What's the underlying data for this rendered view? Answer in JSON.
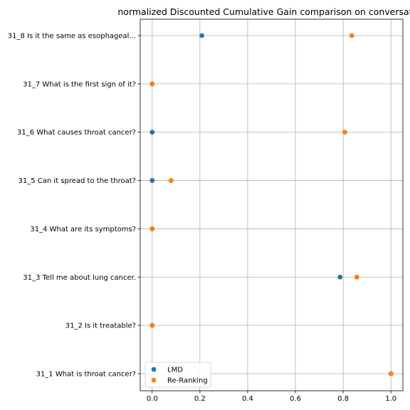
{
  "chart_data": {
    "type": "scatter",
    "title": "normalized Discounted Cumulative Gain comparison on conversation",
    "xlabel": "",
    "ylabel": "",
    "xlim": [
      -0.05,
      1.05
    ],
    "xticks": [
      0.0,
      0.2,
      0.4,
      0.6,
      0.8,
      1.0
    ],
    "xtick_labels": [
      "0.0",
      "0.2",
      "0.4",
      "0.6",
      "0.8",
      "1.0"
    ],
    "categories": [
      "31_1 What is throat cancer?",
      "31_2 Is it treatable?",
      "31_3 Tell me about lung cancer.",
      "31_4 What are its symptoms?",
      "31_5 Can it spread to the throat?",
      "31_6 What causes throat cancer?",
      "31_7 What is the first sign of it?",
      "31_8 Is it the same as esophageal..."
    ],
    "series": [
      {
        "name": "LMD",
        "color": "#1f77b4",
        "values": [
          1.0,
          0.0,
          0.787,
          0.0,
          0.0,
          0.0,
          0.0,
          0.208
        ]
      },
      {
        "name": "Re-Ranking",
        "color": "#ff7f0e",
        "values": [
          1.0,
          0.0,
          0.857,
          0.0,
          0.079,
          0.807,
          0.0,
          0.836
        ]
      }
    ],
    "grid": true,
    "legend_position": "lower-left"
  }
}
